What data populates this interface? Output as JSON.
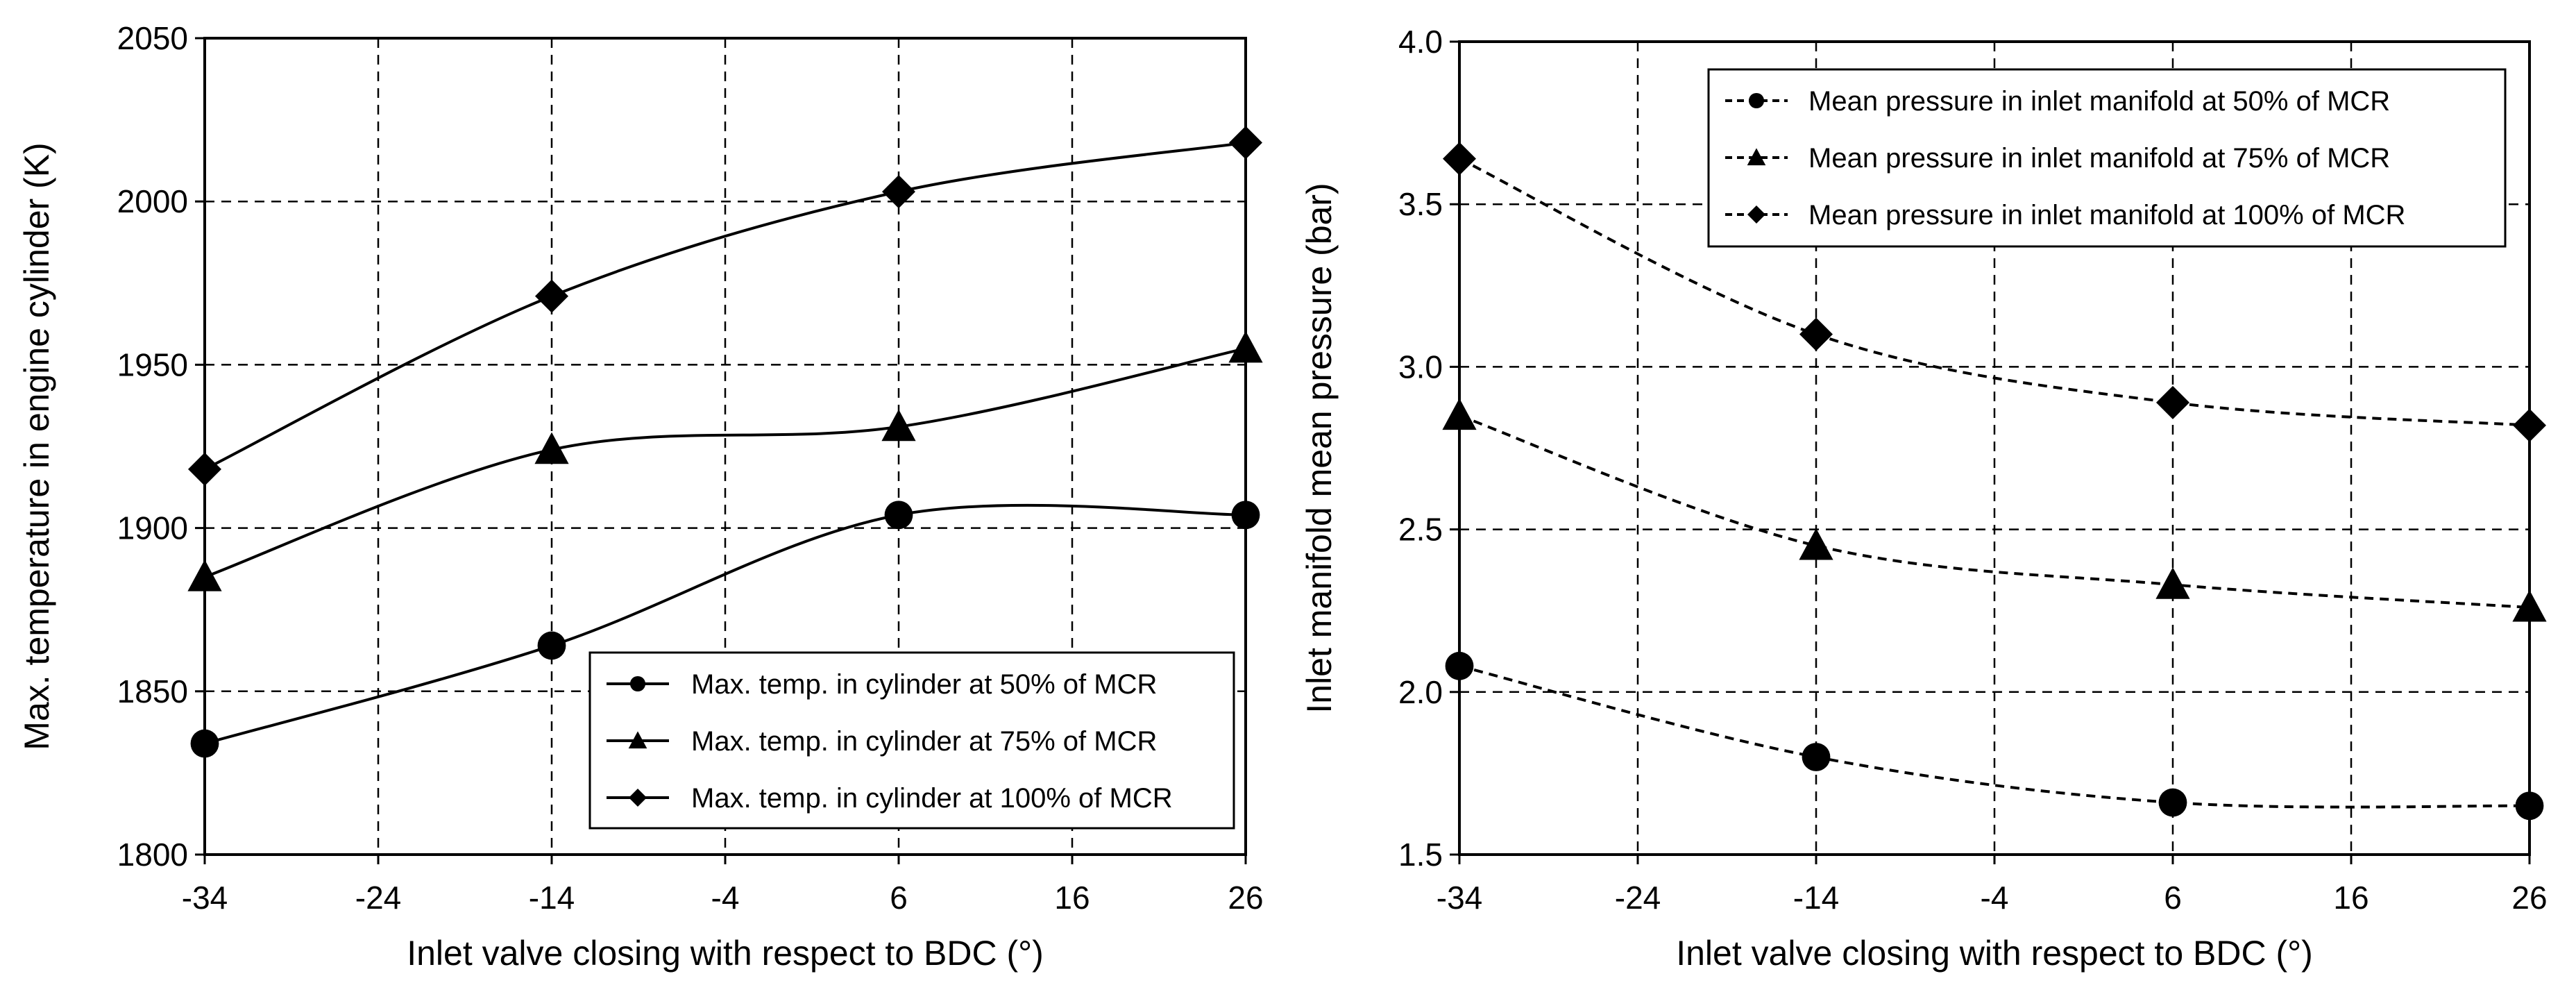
{
  "colors": {
    "line": "#000000",
    "grid": "#000000",
    "background": "#ffffff"
  },
  "chart_data": [
    {
      "type": "line",
      "title": "",
      "xlabel": "Inlet valve closing with respect to BDC (°)",
      "ylabel": "Max. temperature in engine cylinder (K)",
      "x": [
        -34,
        -14,
        6,
        26
      ],
      "xlim": [
        -34,
        26
      ],
      "xticks": [
        -34,
        -24,
        -14,
        -4,
        6,
        16,
        26
      ],
      "ylim": [
        1800,
        2050
      ],
      "yticks": [
        1800,
        1850,
        1900,
        1950,
        2000,
        2050
      ],
      "grid": true,
      "line_style": "solid",
      "legend_position": "bottom-right",
      "series": [
        {
          "name": "Max. temp. in cylinder at 50% of MCR",
          "marker": "circle",
          "values": [
            1834,
            1864,
            1904,
            1904
          ]
        },
        {
          "name": "Max. temp. in cylinder at 75% of MCR",
          "marker": "triangle",
          "values": [
            1885,
            1924,
            1931,
            1955
          ]
        },
        {
          "name": "Max. temp. in cylinder at 100% of MCR",
          "marker": "diamond",
          "values": [
            1918,
            1971,
            2003,
            2018
          ]
        }
      ]
    },
    {
      "type": "line",
      "title": "",
      "xlabel": "Inlet valve closing with respect to BDC (°)",
      "ylabel": "Inlet manifold mean pressure (bar)",
      "x": [
        -34,
        -14,
        6,
        26
      ],
      "xlim": [
        -34,
        26
      ],
      "xticks": [
        -34,
        -24,
        -14,
        -4,
        6,
        16,
        26
      ],
      "ylim": [
        1.5,
        4.0
      ],
      "yticks": [
        1.5,
        2.0,
        2.5,
        3.0,
        3.5,
        4.0
      ],
      "ytick_decimals": 1,
      "grid": true,
      "line_style": "dashed",
      "legend_position": "top-right",
      "series": [
        {
          "name": "Mean pressure in inlet manifold at 50% of MCR",
          "marker": "circle",
          "values": [
            2.08,
            1.8,
            1.66,
            1.65
          ]
        },
        {
          "name": "Mean pressure in inlet manifold at 75% of MCR",
          "marker": "triangle",
          "values": [
            2.85,
            2.45,
            2.33,
            2.26
          ]
        },
        {
          "name": "Mean pressure in inlet manifold at 100% of MCR",
          "marker": "diamond",
          "values": [
            3.64,
            3.1,
            2.89,
            2.82
          ]
        }
      ]
    }
  ]
}
